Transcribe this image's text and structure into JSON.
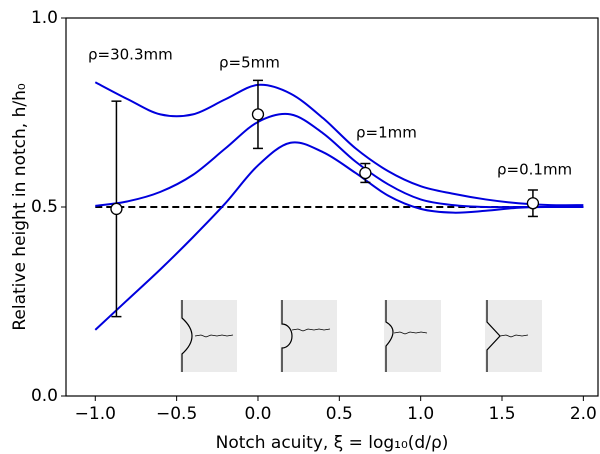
{
  "chart_data": {
    "type": "line",
    "xlabel": "Notch acuity, ξ = log₁₀(d/ρ)",
    "ylabel": "Relative height in notch, h/h₀",
    "xlim": [
      -1.18,
      2.09
    ],
    "ylim": [
      0,
      1
    ],
    "xticks": [
      {
        "value": -1.0,
        "label": "−1.0"
      },
      {
        "value": -0.5,
        "label": "−0.5"
      },
      {
        "value": 0.0,
        "label": "0.0"
      },
      {
        "value": 0.5,
        "label": "0.5"
      },
      {
        "value": 1.0,
        "label": "1.0"
      },
      {
        "value": 1.5,
        "label": "1.5"
      },
      {
        "value": 2.0,
        "label": "2.0"
      }
    ],
    "yticks": [
      {
        "value": 0.0,
        "label": "0.0"
      },
      {
        "value": 0.5,
        "label": "0.5"
      },
      {
        "value": 1.0,
        "label": "1.0"
      }
    ],
    "x": [
      -1.0,
      -0.8,
      -0.6,
      -0.4,
      -0.2,
      0.0,
      0.2,
      0.4,
      0.6,
      0.8,
      1.0,
      1.2,
      1.4,
      1.6,
      1.8,
      2.0
    ],
    "series": [
      {
        "color": "#0000dd",
        "values": [
          0.83,
          0.785,
          0.745,
          0.745,
          0.785,
          0.823,
          0.8,
          0.735,
          0.655,
          0.595,
          0.555,
          0.535,
          0.52,
          0.51,
          0.505,
          0.505
        ]
      },
      {
        "color": "#0000dd",
        "values": [
          0.503,
          0.515,
          0.54,
          0.585,
          0.655,
          0.725,
          0.745,
          0.695,
          0.62,
          0.56,
          0.52,
          0.505,
          0.5,
          0.5,
          0.5,
          0.5
        ]
      },
      {
        "color": "#0000dd",
        "values": [
          0.175,
          0.255,
          0.335,
          0.42,
          0.51,
          0.61,
          0.67,
          0.645,
          0.59,
          0.53,
          0.495,
          0.485,
          0.49,
          0.498,
          0.5,
          0.5
        ]
      }
    ],
    "reference_line": 0.5,
    "points": {
      "x": [
        -0.87,
        0.0,
        0.66,
        1.69
      ],
      "values": [
        0.495,
        0.745,
        0.59,
        0.51
      ],
      "errors": [
        0.285,
        0.09,
        0.025,
        0.035
      ]
    },
    "annotations": [
      "ρ=30.3mm",
      "ρ=5mm",
      "ρ=1mm",
      "ρ=0.1mm"
    ]
  }
}
